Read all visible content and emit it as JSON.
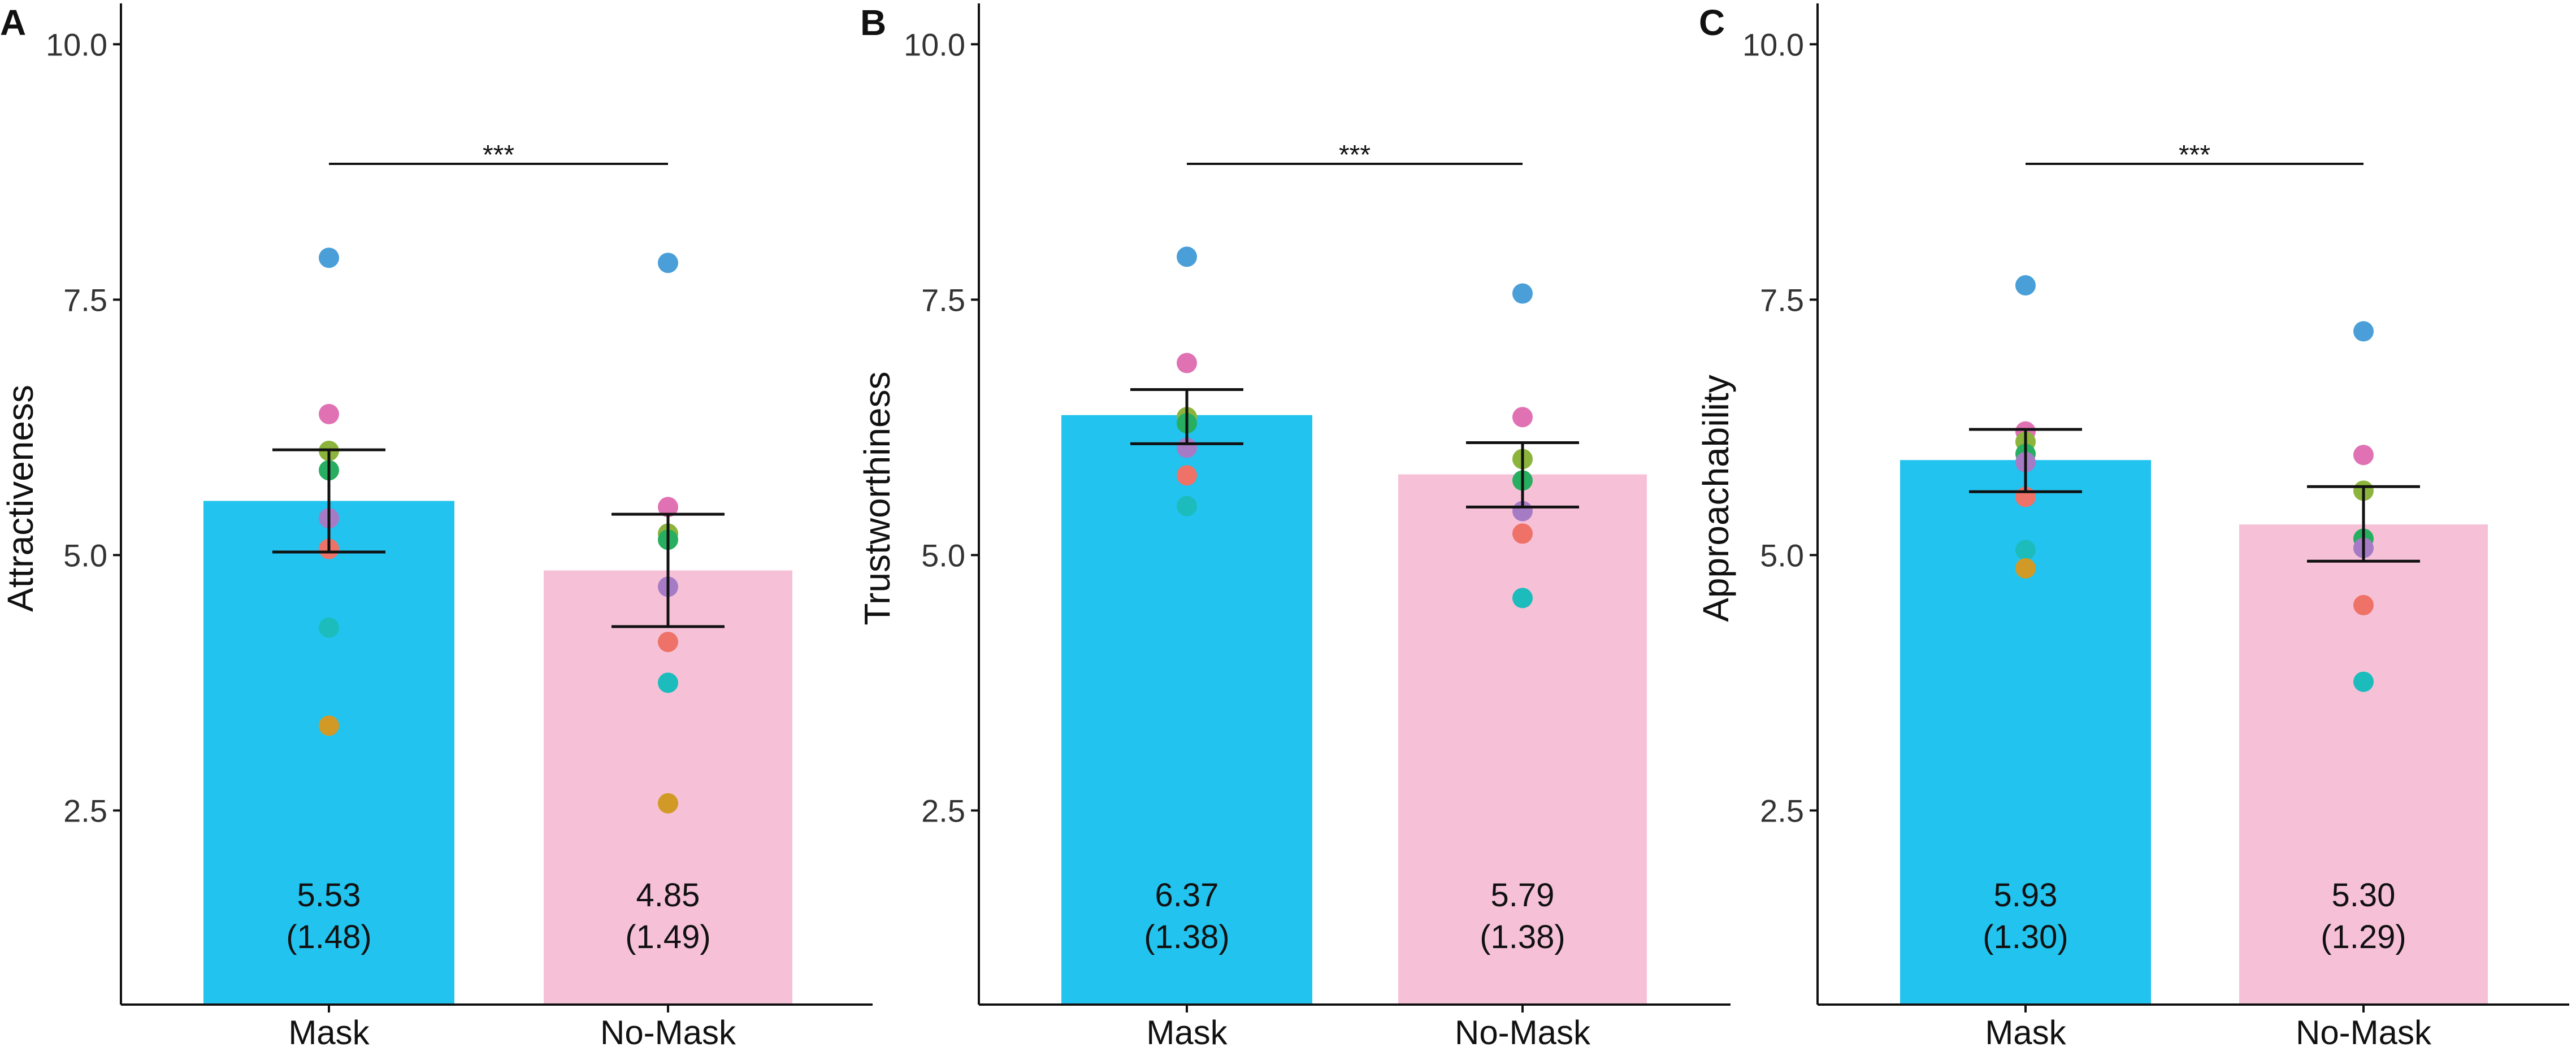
{
  "chart_data": [
    {
      "type": "bar",
      "panel": "A",
      "ylabel": "Attractiveness",
      "xlabel": "",
      "ylim": [
        0.6,
        10.4
      ],
      "yticks": [
        2.5,
        5.0,
        7.5,
        10.0
      ],
      "ytick_labels": [
        "2.5",
        "5.0",
        "7.5",
        "10.0"
      ],
      "categories": [
        "Mask",
        "No-Mask"
      ],
      "values": [
        5.53,
        4.85
      ],
      "sd_labels": [
        "(1.48)",
        "(1.49)"
      ],
      "value_labels": [
        "5.53",
        "4.85"
      ],
      "error_bars": [
        [
          5.03,
          6.03
        ],
        [
          4.3,
          5.4
        ]
      ],
      "significance": "***",
      "points": [
        [
          7.91,
          6.38,
          6.02,
          5.83,
          5.36,
          5.06,
          4.29,
          3.33
        ],
        [
          7.86,
          5.47,
          5.21,
          5.15,
          4.69,
          4.15,
          3.75,
          2.57
        ]
      ]
    },
    {
      "type": "bar",
      "panel": "B",
      "ylabel": "Trustworthiness",
      "xlabel": "",
      "ylim": [
        0.6,
        10.4
      ],
      "yticks": [
        2.5,
        5.0,
        7.5,
        10.0
      ],
      "ytick_labels": [
        "2.5",
        "5.0",
        "7.5",
        "10.0"
      ],
      "categories": [
        "Mask",
        "No-Mask"
      ],
      "values": [
        6.37,
        5.79
      ],
      "sd_labels": [
        "(1.38)",
        "(1.38)"
      ],
      "value_labels": [
        "6.37",
        "5.79"
      ],
      "error_bars": [
        [
          6.09,
          6.62
        ],
        [
          5.47,
          6.1
        ]
      ],
      "significance": "***",
      "points": [
        [
          7.92,
          6.88,
          6.35,
          6.29,
          6.05,
          5.78,
          5.48
        ],
        [
          7.56,
          6.35,
          5.94,
          5.73,
          5.43,
          5.21,
          4.58
        ]
      ]
    },
    {
      "type": "bar",
      "panel": "C",
      "ylabel": "Approachability",
      "xlabel": "",
      "ylim": [
        0.6,
        10.4
      ],
      "yticks": [
        2.5,
        5.0,
        7.5,
        10.0
      ],
      "ytick_labels": [
        "2.5",
        "5.0",
        "7.5",
        "10.0"
      ],
      "categories": [
        "Mask",
        "No-Mask"
      ],
      "values": [
        5.93,
        5.3
      ],
      "sd_labels": [
        "(1.30)",
        "(1.29)"
      ],
      "value_labels": [
        "5.93",
        "5.30"
      ],
      "error_bars": [
        [
          5.62,
          6.23
        ],
        [
          4.94,
          5.67
        ]
      ],
      "significance": "***",
      "points": [
        [
          7.64,
          6.21,
          6.11,
          5.99,
          5.91,
          5.57,
          5.05,
          4.87
        ],
        [
          7.19,
          5.98,
          5.63,
          5.16,
          5.07,
          4.51,
          3.76
        ]
      ]
    }
  ],
  "colors": {
    "mask_bar": "#22C3EE",
    "nomask_bar": "#F6C1D7",
    "points": [
      "#4A9FD8",
      "#E072B4",
      "#8CB43C",
      "#27AE60",
      "#A67BC6",
      "#EE7267",
      "#1CBCBC",
      "#D19A26"
    ],
    "text": "#111111"
  }
}
